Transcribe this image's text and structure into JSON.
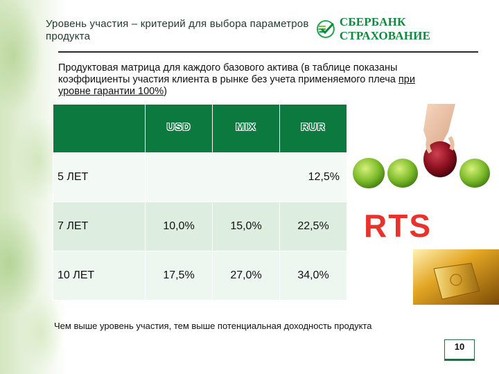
{
  "header": {
    "title": "Уровень участия – критерий для выбора параметров продукта",
    "logo_text": "СБЕРБАНК СТРАХОВАНИЕ"
  },
  "intro": {
    "text_before": "Продуктовая матрица для каждого базового актива (в таблице показаны коэффициенты участия клиента в рынке без учета применяемого плеча ",
    "underlined": "при уровне гарантии 100%",
    "text_after": ")"
  },
  "table": {
    "columns": [
      "USD",
      "MIX",
      "RUR"
    ],
    "rows": [
      {
        "label": "5 ЛЕТ",
        "merged_value": "12,5%"
      },
      {
        "label": "7 ЛЕТ",
        "values": [
          "10,0%",
          "15,0%",
          "22,5%"
        ]
      },
      {
        "label": "10 ЛЕТ",
        "values": [
          "17,5%",
          "27,0%",
          "34,0%"
        ]
      }
    ]
  },
  "rts_logo": "RTS",
  "footer": {
    "note": "Чем выше уровень участия, тем выше потенциальная доходность продукта",
    "page_number": "10"
  },
  "colors": {
    "brand_green": "#0c7a3e",
    "logo_green": "#0d8a3c",
    "rts_red": "#e8332c"
  }
}
